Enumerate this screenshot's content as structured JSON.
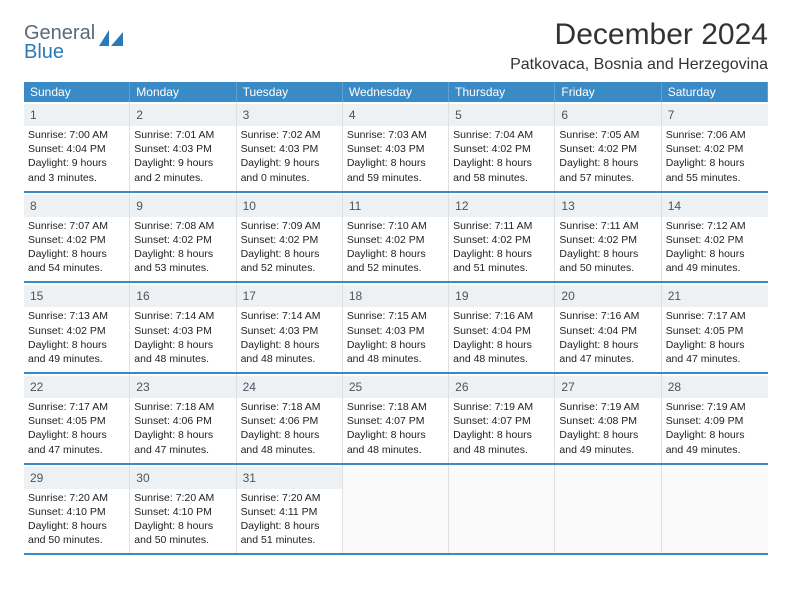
{
  "logo": {
    "line1": "General",
    "line2": "Blue"
  },
  "title": "December 2024",
  "location": "Patkovaca, Bosnia and Herzegovina",
  "colors": {
    "header_bar": "#3a8ac6",
    "header_text": "#ffffff",
    "daynum_bg": "#eef1f3",
    "week_border": "#3a8ac6",
    "logo_gray": "#5a6a78",
    "logo_blue": "#2a7ab8",
    "body_text": "#222222",
    "page_bg": "#ffffff"
  },
  "dow": [
    "Sunday",
    "Monday",
    "Tuesday",
    "Wednesday",
    "Thursday",
    "Friday",
    "Saturday"
  ],
  "days": [
    {
      "n": 1,
      "sr": "7:00 AM",
      "ss": "4:04 PM",
      "dl": "9 hours and 3 minutes."
    },
    {
      "n": 2,
      "sr": "7:01 AM",
      "ss": "4:03 PM",
      "dl": "9 hours and 2 minutes."
    },
    {
      "n": 3,
      "sr": "7:02 AM",
      "ss": "4:03 PM",
      "dl": "9 hours and 0 minutes."
    },
    {
      "n": 4,
      "sr": "7:03 AM",
      "ss": "4:03 PM",
      "dl": "8 hours and 59 minutes."
    },
    {
      "n": 5,
      "sr": "7:04 AM",
      "ss": "4:02 PM",
      "dl": "8 hours and 58 minutes."
    },
    {
      "n": 6,
      "sr": "7:05 AM",
      "ss": "4:02 PM",
      "dl": "8 hours and 57 minutes."
    },
    {
      "n": 7,
      "sr": "7:06 AM",
      "ss": "4:02 PM",
      "dl": "8 hours and 55 minutes."
    },
    {
      "n": 8,
      "sr": "7:07 AM",
      "ss": "4:02 PM",
      "dl": "8 hours and 54 minutes."
    },
    {
      "n": 9,
      "sr": "7:08 AM",
      "ss": "4:02 PM",
      "dl": "8 hours and 53 minutes."
    },
    {
      "n": 10,
      "sr": "7:09 AM",
      "ss": "4:02 PM",
      "dl": "8 hours and 52 minutes."
    },
    {
      "n": 11,
      "sr": "7:10 AM",
      "ss": "4:02 PM",
      "dl": "8 hours and 52 minutes."
    },
    {
      "n": 12,
      "sr": "7:11 AM",
      "ss": "4:02 PM",
      "dl": "8 hours and 51 minutes."
    },
    {
      "n": 13,
      "sr": "7:11 AM",
      "ss": "4:02 PM",
      "dl": "8 hours and 50 minutes."
    },
    {
      "n": 14,
      "sr": "7:12 AM",
      "ss": "4:02 PM",
      "dl": "8 hours and 49 minutes."
    },
    {
      "n": 15,
      "sr": "7:13 AM",
      "ss": "4:02 PM",
      "dl": "8 hours and 49 minutes."
    },
    {
      "n": 16,
      "sr": "7:14 AM",
      "ss": "4:03 PM",
      "dl": "8 hours and 48 minutes."
    },
    {
      "n": 17,
      "sr": "7:14 AM",
      "ss": "4:03 PM",
      "dl": "8 hours and 48 minutes."
    },
    {
      "n": 18,
      "sr": "7:15 AM",
      "ss": "4:03 PM",
      "dl": "8 hours and 48 minutes."
    },
    {
      "n": 19,
      "sr": "7:16 AM",
      "ss": "4:04 PM",
      "dl": "8 hours and 48 minutes."
    },
    {
      "n": 20,
      "sr": "7:16 AM",
      "ss": "4:04 PM",
      "dl": "8 hours and 47 minutes."
    },
    {
      "n": 21,
      "sr": "7:17 AM",
      "ss": "4:05 PM",
      "dl": "8 hours and 47 minutes."
    },
    {
      "n": 22,
      "sr": "7:17 AM",
      "ss": "4:05 PM",
      "dl": "8 hours and 47 minutes."
    },
    {
      "n": 23,
      "sr": "7:18 AM",
      "ss": "4:06 PM",
      "dl": "8 hours and 47 minutes."
    },
    {
      "n": 24,
      "sr": "7:18 AM",
      "ss": "4:06 PM",
      "dl": "8 hours and 48 minutes."
    },
    {
      "n": 25,
      "sr": "7:18 AM",
      "ss": "4:07 PM",
      "dl": "8 hours and 48 minutes."
    },
    {
      "n": 26,
      "sr": "7:19 AM",
      "ss": "4:07 PM",
      "dl": "8 hours and 48 minutes."
    },
    {
      "n": 27,
      "sr": "7:19 AM",
      "ss": "4:08 PM",
      "dl": "8 hours and 49 minutes."
    },
    {
      "n": 28,
      "sr": "7:19 AM",
      "ss": "4:09 PM",
      "dl": "8 hours and 49 minutes."
    },
    {
      "n": 29,
      "sr": "7:20 AM",
      "ss": "4:10 PM",
      "dl": "8 hours and 50 minutes."
    },
    {
      "n": 30,
      "sr": "7:20 AM",
      "ss": "4:10 PM",
      "dl": "8 hours and 50 minutes."
    },
    {
      "n": 31,
      "sr": "7:20 AM",
      "ss": "4:11 PM",
      "dl": "8 hours and 51 minutes."
    }
  ],
  "labels": {
    "sunrise": "Sunrise:",
    "sunset": "Sunset:",
    "daylight": "Daylight:"
  },
  "layout": {
    "start_dow": 0,
    "cols": 7
  }
}
